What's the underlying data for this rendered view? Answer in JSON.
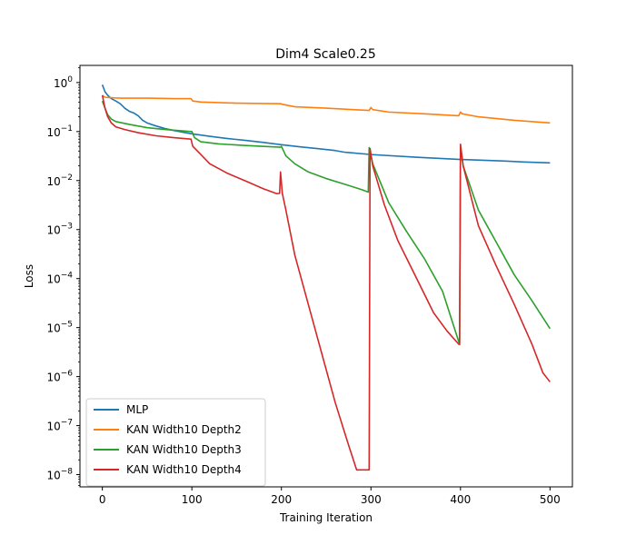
{
  "chart_data": {
    "type": "line",
    "title": "Dim4 Scale0.25",
    "xlabel": "Training Iteration",
    "ylabel": "Loss",
    "yscale": "log",
    "xlim": [
      -25,
      525
    ],
    "ylim_exp": [
      -8.25,
      0.35
    ],
    "x_ticks": [
      0,
      100,
      200,
      300,
      400,
      500
    ],
    "y_ticks": [
      {
        "exp": 0,
        "base": "10",
        "sup": "0"
      },
      {
        "exp": -1,
        "base": "10",
        "sup": "−1"
      },
      {
        "exp": -2,
        "base": "10",
        "sup": "−2"
      },
      {
        "exp": -3,
        "base": "10",
        "sup": "−3"
      },
      {
        "exp": -4,
        "base": "10",
        "sup": "−4"
      },
      {
        "exp": -5,
        "base": "10",
        "sup": "−5"
      },
      {
        "exp": -6,
        "base": "10",
        "sup": "−6"
      },
      {
        "exp": -7,
        "base": "10",
        "sup": "−7"
      },
      {
        "exp": -8,
        "base": "10",
        "sup": "−8"
      }
    ],
    "legend_position": "lower-left",
    "series": [
      {
        "name": "MLP",
        "color": "#1f77b4",
        "points": [
          [
            0,
            0.9
          ],
          [
            3,
            0.65
          ],
          [
            6,
            0.55
          ],
          [
            10,
            0.47
          ],
          [
            15,
            0.42
          ],
          [
            20,
            0.37
          ],
          [
            25,
            0.3
          ],
          [
            30,
            0.26
          ],
          [
            35,
            0.24
          ],
          [
            40,
            0.21
          ],
          [
            45,
            0.17
          ],
          [
            50,
            0.15
          ],
          [
            60,
            0.13
          ],
          [
            70,
            0.115
          ],
          [
            80,
            0.105
          ],
          [
            90,
            0.097
          ],
          [
            100,
            0.09
          ],
          [
            120,
            0.08
          ],
          [
            140,
            0.072
          ],
          [
            160,
            0.066
          ],
          [
            180,
            0.06
          ],
          [
            200,
            0.054
          ],
          [
            220,
            0.049
          ],
          [
            240,
            0.045
          ],
          [
            260,
            0.041
          ],
          [
            270,
            0.038
          ],
          [
            300,
            0.034
          ],
          [
            350,
            0.03
          ],
          [
            400,
            0.027
          ],
          [
            450,
            0.025
          ],
          [
            470,
            0.024
          ],
          [
            500,
            0.023
          ]
        ]
      },
      {
        "name": "KAN Width10 Depth2",
        "color": "#ff7f0e",
        "points": [
          [
            0,
            0.55
          ],
          [
            3,
            0.5
          ],
          [
            10,
            0.49
          ],
          [
            20,
            0.48
          ],
          [
            50,
            0.48
          ],
          [
            80,
            0.47
          ],
          [
            99,
            0.47
          ],
          [
            101,
            0.42
          ],
          [
            110,
            0.4
          ],
          [
            150,
            0.38
          ],
          [
            199,
            0.37
          ],
          [
            201,
            0.36
          ],
          [
            215,
            0.32
          ],
          [
            250,
            0.3
          ],
          [
            280,
            0.28
          ],
          [
            298,
            0.27
          ],
          [
            300,
            0.31
          ],
          [
            302,
            0.28
          ],
          [
            320,
            0.25
          ],
          [
            360,
            0.23
          ],
          [
            398,
            0.21
          ],
          [
            400,
            0.25
          ],
          [
            402,
            0.23
          ],
          [
            420,
            0.2
          ],
          [
            460,
            0.17
          ],
          [
            500,
            0.15
          ]
        ]
      },
      {
        "name": "KAN Width10 Depth3",
        "color": "#2ca02c",
        "points": [
          [
            0,
            0.42
          ],
          [
            3,
            0.3
          ],
          [
            6,
            0.22
          ],
          [
            10,
            0.18
          ],
          [
            15,
            0.16
          ],
          [
            30,
            0.14
          ],
          [
            50,
            0.12
          ],
          [
            70,
            0.11
          ],
          [
            99,
            0.1
          ],
          [
            100,
            0.1
          ],
          [
            103,
            0.075
          ],
          [
            110,
            0.062
          ],
          [
            130,
            0.056
          ],
          [
            160,
            0.052
          ],
          [
            199,
            0.048
          ],
          [
            200,
            0.05
          ],
          [
            205,
            0.032
          ],
          [
            215,
            0.022
          ],
          [
            230,
            0.015
          ],
          [
            250,
            0.011
          ],
          [
            270,
            0.0085
          ],
          [
            290,
            0.0065
          ],
          [
            297,
            0.0058
          ],
          [
            298,
            0.047
          ],
          [
            302,
            0.022
          ],
          [
            320,
            0.0035
          ],
          [
            340,
            0.0009
          ],
          [
            360,
            0.00025
          ],
          [
            380,
            5.5e-05
          ],
          [
            398,
            5.2e-06
          ],
          [
            399,
            4.8e-06
          ],
          [
            400,
            0.048
          ],
          [
            403,
            0.02
          ],
          [
            420,
            0.0025
          ],
          [
            440,
            0.00055
          ],
          [
            460,
            0.00012
          ],
          [
            480,
            3.5e-05
          ],
          [
            500,
            9.5e-06
          ]
        ]
      },
      {
        "name": "KAN Width10 Depth4",
        "color": "#d62728",
        "points": [
          [
            0,
            0.55
          ],
          [
            3,
            0.3
          ],
          [
            6,
            0.2
          ],
          [
            10,
            0.15
          ],
          [
            15,
            0.125
          ],
          [
            25,
            0.11
          ],
          [
            40,
            0.095
          ],
          [
            60,
            0.082
          ],
          [
            80,
            0.075
          ],
          [
            99,
            0.07
          ],
          [
            101,
            0.05
          ],
          [
            110,
            0.034
          ],
          [
            120,
            0.022
          ],
          [
            140,
            0.014
          ],
          [
            160,
            0.0098
          ],
          [
            180,
            0.0068
          ],
          [
            195,
            0.0054
          ],
          [
            198,
            0.0055
          ],
          [
            199,
            0.015
          ],
          [
            201,
            0.0055
          ],
          [
            205,
            0.0025
          ],
          [
            215,
            0.0003
          ],
          [
            230,
            3e-05
          ],
          [
            245,
            3e-06
          ],
          [
            260,
            3e-07
          ],
          [
            275,
            4e-08
          ],
          [
            284,
            1.25e-08
          ],
          [
            298,
            1.25e-08
          ],
          [
            299,
            0.045
          ],
          [
            302,
            0.02
          ],
          [
            315,
            0.0032
          ],
          [
            330,
            0.0006
          ],
          [
            350,
            0.00011
          ],
          [
            370,
            2e-05
          ],
          [
            385,
            8.5e-06
          ],
          [
            398,
            4.6e-06
          ],
          [
            399,
            4.5e-06
          ],
          [
            400,
            0.055
          ],
          [
            403,
            0.02
          ],
          [
            420,
            0.0012
          ],
          [
            440,
            0.00018
          ],
          [
            460,
            3e-05
          ],
          [
            480,
            4.5e-06
          ],
          [
            492,
            1.2e-06
          ],
          [
            500,
            7.8e-07
          ]
        ]
      }
    ]
  }
}
